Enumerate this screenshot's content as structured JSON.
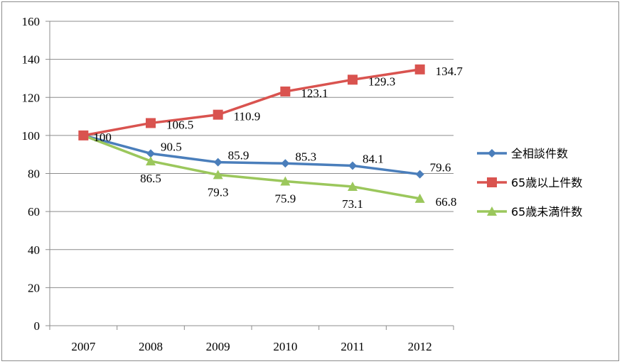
{
  "chart_data": {
    "type": "line",
    "title": "",
    "xlabel": "",
    "ylabel": "",
    "categories": [
      "2007",
      "2008",
      "2009",
      "2010",
      "2011",
      "2012"
    ],
    "ylim": [
      0,
      160
    ],
    "yticks": [
      "0",
      "20",
      "40",
      "60",
      "80",
      "100",
      "120",
      "140",
      "160"
    ],
    "grid": true,
    "legend_position": "right",
    "series": [
      {
        "name": "全相談件数",
        "marker": "diamond",
        "color": "#4a7ebb",
        "values": [
          100,
          90.5,
          85.9,
          85.3,
          84.1,
          79.6
        ],
        "labels": [
          "",
          "90.5",
          "85.9",
          "85.3",
          "84.1",
          "79.6"
        ]
      },
      {
        "name": "65歳以上件数",
        "marker": "square",
        "color": "#d9534f",
        "values": [
          100,
          106.5,
          110.9,
          123.1,
          129.3,
          134.7
        ],
        "labels": [
          "100",
          "106.5",
          "110.9",
          "123.1",
          "129.3",
          "134.7"
        ]
      },
      {
        "name": "65歳未満件数",
        "marker": "triangle",
        "color": "#9bc75c",
        "values": [
          100,
          86.5,
          79.3,
          75.9,
          73.1,
          66.8
        ],
        "labels": [
          "",
          "86.5",
          "79.3",
          "75.9",
          "73.1",
          "66.8"
        ]
      }
    ]
  }
}
